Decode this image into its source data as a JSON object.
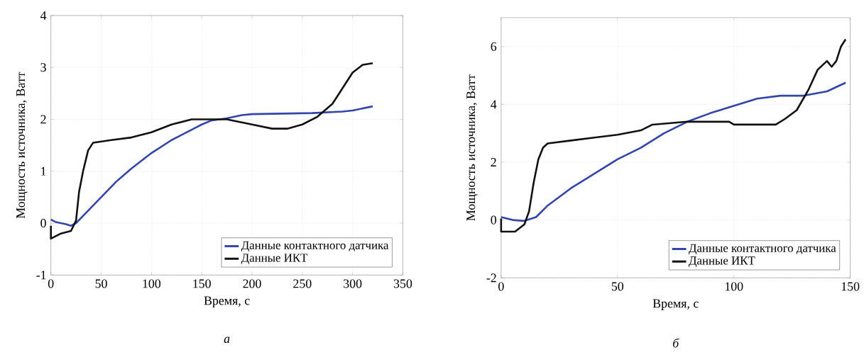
{
  "chart_data": [
    {
      "type": "line",
      "xlabel": "Время, с",
      "ylabel": "Мощность источника, Ватт",
      "annotations": [
        "а"
      ],
      "xlim": [
        0,
        350
      ],
      "xticks": [
        0,
        50,
        100,
        150,
        200,
        250,
        300,
        350
      ],
      "ylim": [
        -1,
        4
      ],
      "yticks": [
        -1,
        0,
        1,
        2,
        3,
        4
      ],
      "grid": true,
      "legend": "bottom right",
      "line_style": "solid",
      "series": [
        {
          "name": "Данные контактного датчика",
          "color": "#3344aa",
          "x": [
            0,
            5,
            15,
            20,
            25,
            35,
            50,
            65,
            80,
            100,
            120,
            140,
            150,
            160,
            175,
            190,
            200,
            260,
            290,
            300,
            320
          ],
          "values": [
            0.07,
            0.02,
            -0.02,
            -0.05,
            0,
            0.2,
            0.5,
            0.8,
            1.05,
            1.35,
            1.6,
            1.8,
            1.9,
            1.98,
            2.02,
            2.08,
            2.1,
            2.12,
            2.15,
            2.17,
            2.25
          ]
        },
        {
          "name": "Данные ИКТ",
          "color": "#111111",
          "x": [
            0,
            0,
            10,
            20,
            25,
            28,
            32,
            37,
            42,
            60,
            80,
            100,
            120,
            140,
            175,
            200,
            220,
            235,
            250,
            265,
            280,
            290,
            300,
            310,
            320
          ],
          "values": [
            -0.05,
            -0.3,
            -0.2,
            -0.15,
            0.05,
            0.6,
            1.0,
            1.4,
            1.55,
            1.6,
            1.65,
            1.75,
            1.9,
            2.0,
            2.0,
            1.9,
            1.82,
            1.82,
            1.9,
            2.05,
            2.3,
            2.6,
            2.9,
            3.05,
            3.08
          ]
        }
      ]
    },
    {
      "type": "line",
      "xlabel": "Время, с",
      "ylabel": "Мощность источника, Ватт",
      "annotations": [
        "б"
      ],
      "xlim": [
        0,
        150
      ],
      "xticks": [
        0,
        50,
        100,
        150
      ],
      "ylim": [
        -2,
        7
      ],
      "yticks": [
        -2,
        0,
        2,
        4,
        6
      ],
      "grid": true,
      "legend": "bottom right",
      "line_style": "solid",
      "series": [
        {
          "name": "Данные контактного датчика",
          "color": "#3344aa",
          "x": [
            0,
            5,
            10,
            15,
            20,
            30,
            40,
            50,
            60,
            70,
            80,
            90,
            100,
            110,
            120,
            130,
            140,
            148
          ],
          "values": [
            0.1,
            0,
            -0.03,
            0.1,
            0.5,
            1.1,
            1.6,
            2.1,
            2.5,
            3.0,
            3.4,
            3.7,
            3.95,
            4.2,
            4.3,
            4.3,
            4.45,
            4.75
          ]
        },
        {
          "name": "Данные ИКТ",
          "color": "#111111",
          "x": [
            0,
            0,
            6,
            10,
            12,
            14,
            16,
            18,
            20,
            30,
            40,
            50,
            60,
            65,
            80,
            98,
            100,
            118,
            122,
            127,
            132,
            136,
            140,
            142,
            144,
            146,
            148
          ],
          "values": [
            0.05,
            -0.4,
            -0.4,
            -0.15,
            0.3,
            1.3,
            2.1,
            2.5,
            2.65,
            2.75,
            2.85,
            2.95,
            3.1,
            3.3,
            3.4,
            3.4,
            3.3,
            3.3,
            3.5,
            3.8,
            4.5,
            5.2,
            5.5,
            5.3,
            5.5,
            6.0,
            6.25
          ]
        }
      ]
    }
  ]
}
